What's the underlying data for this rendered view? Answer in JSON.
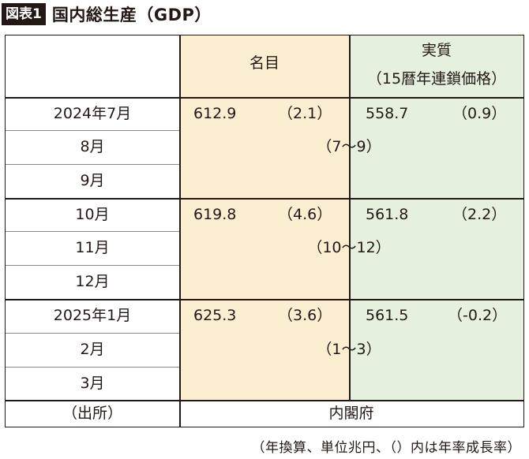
{
  "header": {
    "badge": "図表1",
    "title": "国内総生産（GDP）"
  },
  "columns": {
    "nominal": "名目",
    "real": "実質",
    "real_sub": "（15暦年連鎖価格）"
  },
  "rows": [
    {
      "label": "2024年7月",
      "nominal": "612.9",
      "nominal_growth": "（2.1）",
      "real": "558.7",
      "real_growth": "（0.9）"
    },
    {
      "label": "8月"
    },
    {
      "label": "9月"
    },
    {
      "label": "10月",
      "nominal": "619.8",
      "nominal_growth": "（4.6）",
      "real": "561.8",
      "real_growth": "（2.2）"
    },
    {
      "label": "11月"
    },
    {
      "label": "12月"
    },
    {
      "label": "2025年1月",
      "nominal": "625.3",
      "nominal_growth": "（3.6）",
      "real": "561.5",
      "real_growth": "（-0.2）"
    },
    {
      "label": "2月"
    },
    {
      "label": "3月"
    }
  ],
  "quarter_labels": [
    "（7〜9）",
    "（10〜12）",
    "（1〜3）"
  ],
  "source": {
    "label": "（出所）",
    "value": "内閣府"
  },
  "footnote": "（年換算、単位兆円、（）内は年率成長率）",
  "colors": {
    "nominal_bg": "#fcefd1",
    "real_bg": "#e5f1de",
    "ink": "#231815"
  }
}
